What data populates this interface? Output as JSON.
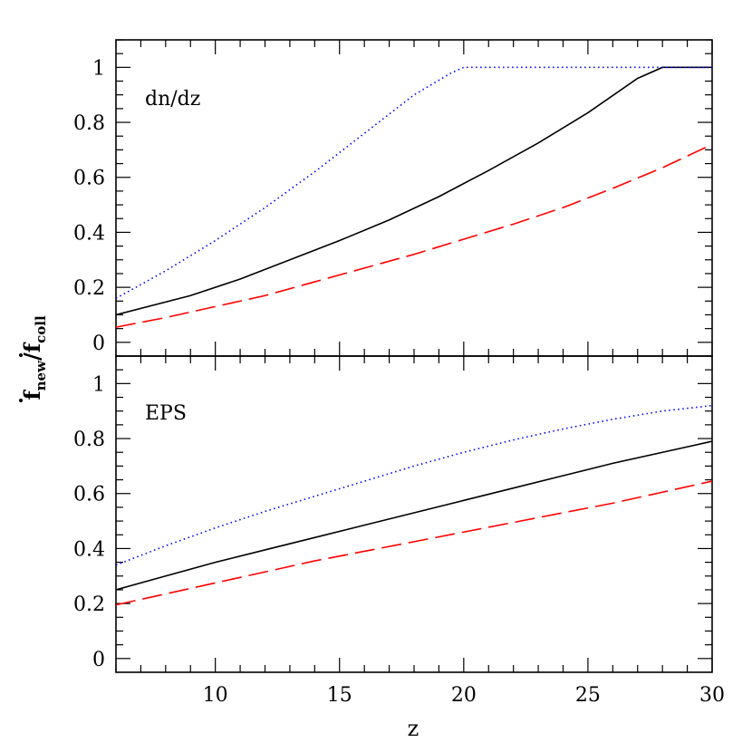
{
  "chart_data": [
    {
      "type": "line",
      "panel": "top",
      "annotation": "dn/dz",
      "xlim": [
        6,
        30
      ],
      "ylim": [
        -0.05,
        1.1
      ],
      "y_ticks": [
        0,
        0.2,
        0.4,
        0.6,
        0.8,
        1
      ],
      "y_tick_labels": [
        "0",
        "0.2",
        "0.4",
        "0.6",
        "0.8",
        "1"
      ],
      "series": [
        {
          "style": "solid",
          "color": "#000000",
          "x": [
            6,
            9,
            11,
            13,
            15,
            17,
            19,
            21,
            23,
            25,
            27,
            28,
            30
          ],
          "y": [
            0.1,
            0.17,
            0.23,
            0.3,
            0.37,
            0.445,
            0.53,
            0.625,
            0.725,
            0.835,
            0.96,
            1.0,
            1.0
          ]
        },
        {
          "style": "dotted",
          "color": "#0000ff",
          "x": [
            6,
            8,
            10,
            12,
            14,
            16,
            18,
            19.5,
            20,
            22,
            25,
            28,
            30
          ],
          "y": [
            0.16,
            0.26,
            0.37,
            0.49,
            0.62,
            0.76,
            0.9,
            0.98,
            1.0,
            1.0,
            1.0,
            1.0,
            1.0
          ]
        },
        {
          "style": "dashed",
          "color": "#ff0000",
          "x": [
            6,
            8,
            10,
            12,
            14,
            16,
            18,
            20,
            22,
            24,
            26,
            28,
            30
          ],
          "y": [
            0.055,
            0.09,
            0.13,
            0.17,
            0.22,
            0.27,
            0.32,
            0.375,
            0.43,
            0.49,
            0.56,
            0.635,
            0.72
          ]
        }
      ]
    },
    {
      "type": "line",
      "panel": "bottom",
      "annotation": "EPS",
      "xlim": [
        6,
        30
      ],
      "ylim": [
        -0.05,
        1.1
      ],
      "y_ticks": [
        0,
        0.2,
        0.4,
        0.6,
        0.8,
        1
      ],
      "y_tick_labels": [
        "0",
        "0.2",
        "0.4",
        "0.6",
        "0.8",
        "1"
      ],
      "x_ticks": [
        10,
        15,
        20,
        25,
        30
      ],
      "x_tick_labels": [
        "10",
        "15",
        "20",
        "25",
        "30"
      ],
      "xlabel": "z",
      "series": [
        {
          "style": "solid",
          "color": "#000000",
          "x": [
            6,
            8,
            10,
            12,
            14,
            16,
            18,
            20,
            22,
            24,
            26,
            28,
            30
          ],
          "y": [
            0.25,
            0.3,
            0.35,
            0.395,
            0.44,
            0.485,
            0.53,
            0.575,
            0.62,
            0.665,
            0.71,
            0.75,
            0.79
          ]
        },
        {
          "style": "dotted",
          "color": "#0000ff",
          "x": [
            6,
            8,
            10,
            12,
            14,
            16,
            18,
            20,
            22,
            24,
            26,
            28,
            30
          ],
          "y": [
            0.34,
            0.41,
            0.475,
            0.535,
            0.59,
            0.645,
            0.7,
            0.75,
            0.795,
            0.835,
            0.87,
            0.9,
            0.92
          ]
        },
        {
          "style": "dashed",
          "color": "#ff0000",
          "x": [
            6,
            8,
            10,
            12,
            14,
            16,
            18,
            20,
            22,
            24,
            26,
            28,
            30
          ],
          "y": [
            0.195,
            0.235,
            0.275,
            0.315,
            0.355,
            0.39,
            0.425,
            0.46,
            0.495,
            0.53,
            0.565,
            0.605,
            0.645
          ]
        }
      ]
    }
  ],
  "ylabel": {
    "numerator": "f",
    "numerator_sub": "new",
    "separator": "/",
    "denominator": "f",
    "denominator_sub": "coll"
  }
}
